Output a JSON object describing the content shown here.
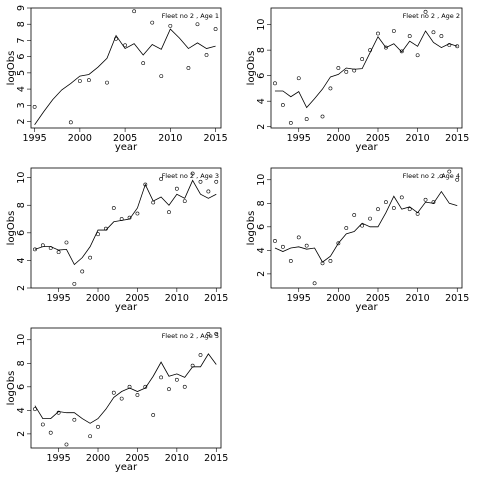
{
  "chart_data": [
    {
      "type": "scatter",
      "title": "Fleet no 2 , Age 1",
      "xlabel": "year",
      "ylabel": "logObs",
      "xlim": [
        1994.6,
        2015.6
      ],
      "ylim": [
        1.6,
        9.0
      ],
      "xticks": [
        1995,
        2000,
        2005,
        2010,
        2015
      ],
      "yticks": [
        2,
        3,
        4,
        5,
        6,
        7,
        8,
        9
      ],
      "grid": false,
      "legend": "none",
      "series": [
        {
          "kind": "points",
          "x": [
            1995,
            1999,
            2000,
            2001,
            2003,
            2004,
            2005,
            2006,
            2007,
            2008,
            2009,
            2010,
            2012,
            2013,
            2014,
            2015
          ],
          "y": [
            2.9,
            1.95,
            4.5,
            4.55,
            4.4,
            7.1,
            6.7,
            8.8,
            5.6,
            8.1,
            4.8,
            7.9,
            5.3,
            8.0,
            6.1,
            7.7
          ]
        },
        {
          "kind": "line",
          "x": [
            1995,
            1996,
            1997,
            1998,
            1999,
            2000,
            2001,
            2002,
            2003,
            2004,
            2005,
            2006,
            2007,
            2008,
            2009,
            2010,
            2011,
            2012,
            2013,
            2014,
            2015
          ],
          "y": [
            1.8,
            2.6,
            3.35,
            3.95,
            4.35,
            4.8,
            4.9,
            5.35,
            5.9,
            7.3,
            6.5,
            6.8,
            6.1,
            6.75,
            6.45,
            7.7,
            7.15,
            6.5,
            6.85,
            6.5,
            6.65
          ]
        }
      ]
    },
    {
      "type": "scatter",
      "title": "Fleet no 2 , Age 2",
      "xlabel": "year",
      "ylabel": "logObs",
      "xlim": [
        1991.5,
        2015.6
      ],
      "ylim": [
        1.9,
        11.3
      ],
      "xticks": [
        1995,
        2000,
        2005,
        2010,
        2015
      ],
      "yticks": [
        2,
        4,
        6,
        8,
        10
      ],
      "grid": false,
      "legend": "none",
      "series": [
        {
          "kind": "points",
          "x": [
            1992,
            1993,
            1994,
            1995,
            1996,
            1998,
            1999,
            2000,
            2001,
            2002,
            2003,
            2004,
            2005,
            2006,
            2007,
            2008,
            2009,
            2010,
            2011,
            2012,
            2013,
            2014,
            2015
          ],
          "y": [
            5.4,
            3.7,
            2.3,
            5.8,
            2.6,
            2.8,
            5.0,
            6.6,
            6.3,
            6.4,
            7.3,
            8.0,
            9.3,
            8.2,
            9.5,
            7.9,
            9.1,
            7.6,
            11.0,
            9.4,
            9.1,
            8.4,
            8.3
          ]
        },
        {
          "kind": "line",
          "x": [
            1992,
            1993,
            1994,
            1995,
            1996,
            1997,
            1998,
            1999,
            2000,
            2001,
            2002,
            2003,
            2004,
            2005,
            2006,
            2007,
            2008,
            2009,
            2010,
            2011,
            2012,
            2013,
            2014,
            2015
          ],
          "y": [
            4.8,
            4.8,
            4.35,
            4.75,
            3.5,
            4.2,
            4.95,
            5.9,
            6.1,
            6.6,
            6.5,
            6.55,
            7.8,
            9.05,
            8.2,
            8.5,
            7.85,
            8.7,
            8.3,
            9.5,
            8.6,
            8.2,
            8.5,
            8.3
          ]
        }
      ]
    },
    {
      "type": "scatter",
      "title": "Fleet no 2 , Age 3",
      "xlabel": "year",
      "ylabel": "logObs",
      "xlim": [
        1991.5,
        2015.6
      ],
      "ylim": [
        2.0,
        10.7
      ],
      "xticks": [
        1995,
        2000,
        2005,
        2010,
        2015
      ],
      "yticks": [
        2,
        4,
        6,
        8,
        10
      ],
      "grid": false,
      "legend": "none",
      "series": [
        {
          "kind": "points",
          "x": [
            1992,
            1993,
            1994,
            1995,
            1996,
            1997,
            1998,
            1999,
            2000,
            2001,
            2002,
            2003,
            2004,
            2005,
            2006,
            2007,
            2008,
            2009,
            2010,
            2011,
            2012,
            2013,
            2014,
            2015
          ],
          "y": [
            4.8,
            5.1,
            4.9,
            4.6,
            5.3,
            2.3,
            3.2,
            4.2,
            5.9,
            6.3,
            7.8,
            7.0,
            7.1,
            7.4,
            9.5,
            8.2,
            9.9,
            7.5,
            9.2,
            8.3,
            10.3,
            9.7,
            9.0,
            9.7
          ]
        },
        {
          "kind": "line",
          "x": [
            1992,
            1993,
            1994,
            1995,
            1996,
            1997,
            1998,
            1999,
            2000,
            2001,
            2002,
            2003,
            2004,
            2005,
            2006,
            2007,
            2008,
            2009,
            2010,
            2011,
            2012,
            2013,
            2014,
            2015
          ],
          "y": [
            4.8,
            5.0,
            5.0,
            4.75,
            4.8,
            3.7,
            4.2,
            5.0,
            6.2,
            6.2,
            6.8,
            6.9,
            7.0,
            7.8,
            9.5,
            8.3,
            8.6,
            8.0,
            8.8,
            8.5,
            9.8,
            8.8,
            8.5,
            8.8
          ]
        }
      ]
    },
    {
      "type": "scatter",
      "title": "Fleet no 2 , Age 4",
      "xlabel": "year",
      "ylabel": "logObs",
      "xlim": [
        1991.5,
        2015.6
      ],
      "ylim": [
        0.8,
        11.0
      ],
      "xticks": [
        1995,
        2000,
        2005,
        2010,
        2015
      ],
      "yticks": [
        2,
        4,
        6,
        8,
        10
      ],
      "grid": false,
      "legend": "none",
      "series": [
        {
          "kind": "points",
          "x": [
            1992,
            1993,
            1994,
            1995,
            1996,
            1997,
            1998,
            1999,
            2000,
            2001,
            2002,
            2003,
            2004,
            2005,
            2006,
            2007,
            2008,
            2009,
            2010,
            2011,
            2012,
            2013,
            2014,
            2015
          ],
          "y": [
            4.8,
            4.3,
            3.1,
            5.1,
            4.4,
            1.2,
            2.9,
            3.1,
            4.6,
            5.9,
            7.0,
            6.1,
            6.7,
            7.5,
            8.1,
            7.6,
            8.5,
            7.5,
            7.1,
            8.3,
            8.1,
            10.3,
            10.7,
            10.0
          ]
        },
        {
          "kind": "line",
          "x": [
            1992,
            1993,
            1994,
            1995,
            1996,
            1997,
            1998,
            1999,
            2000,
            2001,
            2002,
            2003,
            2004,
            2005,
            2006,
            2007,
            2008,
            2009,
            2010,
            2011,
            2012,
            2013,
            2014,
            2015
          ],
          "y": [
            4.2,
            3.9,
            4.2,
            4.3,
            4.1,
            4.2,
            3.0,
            3.5,
            4.6,
            5.4,
            5.6,
            6.3,
            6.0,
            6.0,
            7.2,
            8.6,
            7.5,
            7.7,
            7.2,
            8.1,
            8.0,
            9.0,
            8.0,
            7.8
          ]
        }
      ]
    },
    {
      "type": "scatter",
      "title": "Fleet no 2 , Age 5",
      "xlabel": "year",
      "ylabel": "logObs",
      "xlim": [
        1991.5,
        2015.6
      ],
      "ylim": [
        0.8,
        11.0
      ],
      "xticks": [
        1995,
        2000,
        2005,
        2010,
        2015
      ],
      "yticks": [
        2,
        4,
        6,
        8,
        10
      ],
      "grid": false,
      "legend": "none",
      "series": [
        {
          "kind": "points",
          "x": [
            1992,
            1993,
            1994,
            1995,
            1996,
            1997,
            1999,
            2000,
            2002,
            2003,
            2004,
            2005,
            2006,
            2007,
            2008,
            2009,
            2010,
            2011,
            2012,
            2013,
            2014,
            2015
          ],
          "y": [
            4.1,
            2.8,
            2.1,
            3.8,
            1.1,
            3.2,
            1.8,
            2.6,
            5.5,
            5.0,
            6.0,
            5.3,
            6.0,
            3.6,
            6.8,
            5.8,
            6.6,
            6.0,
            7.8,
            8.7,
            10.5,
            10.5
          ]
        },
        {
          "kind": "line",
          "x": [
            1992,
            1993,
            1994,
            1995,
            1996,
            1997,
            1998,
            1999,
            2000,
            2001,
            2002,
            2003,
            2004,
            2005,
            2006,
            2007,
            2008,
            2009,
            2010,
            2011,
            2012,
            2013,
            2014,
            2015
          ],
          "y": [
            4.4,
            3.3,
            3.3,
            3.9,
            3.8,
            3.8,
            3.3,
            2.9,
            3.3,
            4.1,
            5.1,
            5.6,
            5.9,
            5.6,
            5.9,
            6.9,
            8.1,
            6.9,
            7.1,
            6.8,
            7.7,
            7.7,
            8.8,
            7.9
          ]
        }
      ]
    }
  ]
}
